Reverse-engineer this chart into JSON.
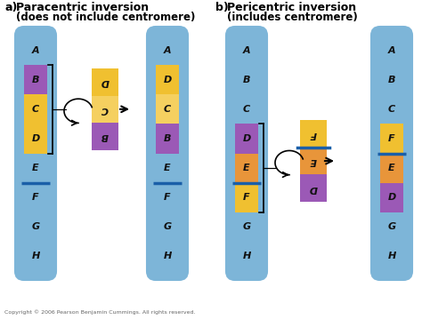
{
  "bg_color": "#ffffff",
  "chr_blue": "#7db5d8",
  "chr_blue_dark": "#6aaace",
  "chr_purple": "#9b59b6",
  "chr_yellow": "#f0c030",
  "chr_orange": "#e8953a",
  "chr_yellow2": "#f5d060",
  "centromere_color": "#1a5fa8",
  "text_color": "#111111",
  "copyright": "Copyright © 2006 Pearson Benjamin Cummings. All rights reserved.",
  "title_a_line1": "a)  Paracentric inversion",
  "title_a_line2": "      (does not include centromere)",
  "title_b_line1": "b)  Pericentric inversion",
  "title_b_line2": "      (includes centromere)"
}
